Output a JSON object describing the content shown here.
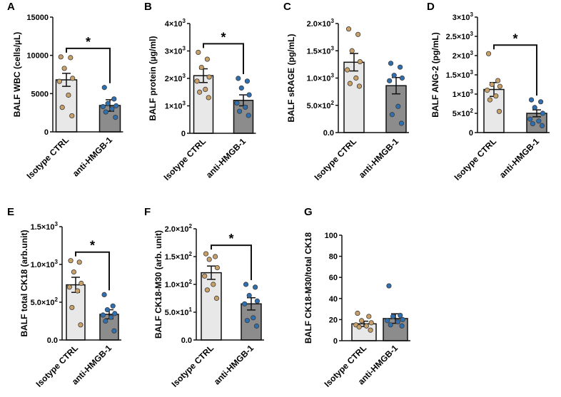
{
  "chart_data": [
    {
      "panel": "A",
      "type": "bar",
      "categories": [
        "Isotype CTRL",
        "anti-HMGB-1"
      ],
      "ylabel": "BALF WBC (cells/µL)",
      "ylim": [
        0,
        15000
      ],
      "yticks": [
        {
          "v": 0,
          "label": "0"
        },
        {
          "v": 5000,
          "label": "5000"
        },
        {
          "v": 10000,
          "label": "10000"
        },
        {
          "v": 15000,
          "label": "15000"
        }
      ],
      "values": [
        6800,
        3450
      ],
      "errors": [
        850,
        750
      ],
      "points": [
        [
          9800,
          9700,
          8300,
          7000,
          6600,
          4800,
          3200,
          2100
        ],
        [
          5800,
          4300,
          3700,
          3400,
          3300,
          3000,
          2600,
          1900
        ]
      ],
      "significance": "*"
    },
    {
      "panel": "B",
      "type": "bar",
      "categories": [
        "Isotype CTRL",
        "anti-HMGB-1"
      ],
      "ylabel": "BALF protein (µg/ml)",
      "ylim": [
        0,
        4000
      ],
      "yticks": [
        {
          "v": 0,
          "label": "0",
          "sup": ""
        },
        {
          "v": 1000,
          "label": "1×10",
          "sup": "3"
        },
        {
          "v": 2000,
          "label": "2×10",
          "sup": "3"
        },
        {
          "v": 3000,
          "label": "3×10",
          "sup": "3"
        },
        {
          "v": 4000,
          "label": "4×10",
          "sup": "3"
        }
      ],
      "values": [
        2100,
        1200
      ],
      "errors": [
        250,
        200
      ],
      "points": [
        [
          2950,
          2700,
          2400,
          2050,
          1900,
          1600,
          1500,
          1300
        ],
        [
          2000,
          1900,
          1650,
          1400,
          1100,
          950,
          800,
          650
        ]
      ],
      "significance": "*"
    },
    {
      "panel": "C",
      "type": "bar",
      "categories": [
        "Isotype CTRL",
        "anti-HMGB-1"
      ],
      "ylabel": "BALF sRAGE (pg/mL)",
      "ylim": [
        0,
        2000
      ],
      "yticks": [
        {
          "v": 0,
          "label": "0.0",
          "sup": ""
        },
        {
          "v": 500,
          "label": "5.0×10",
          "sup": "2"
        },
        {
          "v": 1000,
          "label": "1.0×10",
          "sup": "3"
        },
        {
          "v": 1500,
          "label": "1.5×10",
          "sup": "3"
        },
        {
          "v": 2000,
          "label": "2.0×10",
          "sup": "3"
        }
      ],
      "values": [
        1290,
        860
      ],
      "errors": [
        160,
        150
      ],
      "points": [
        [
          1900,
          1800,
          1500,
          1300,
          1150,
          1000,
          900,
          850
        ],
        [
          1270,
          1200,
          1050,
          1000,
          950,
          480,
          330,
          170
        ]
      ],
      "significance": ""
    },
    {
      "panel": "D",
      "type": "bar",
      "categories": [
        "Isotype CTRL",
        "anti-HMGB-1"
      ],
      "ylabel": "BALF ANG-2 (pg/mL)",
      "ylim": [
        0,
        3000
      ],
      "yticks": [
        {
          "v": 0,
          "label": "0",
          "sup": ""
        },
        {
          "v": 500,
          "label": "5×10",
          "sup": "2"
        },
        {
          "v": 1000,
          "label": "1×10",
          "sup": "3"
        },
        {
          "v": 1500,
          "label": "1.5×10",
          "sup": "3"
        },
        {
          "v": 2000,
          "label": "2×10",
          "sup": "3"
        },
        {
          "v": 2500,
          "label": "2.5×10",
          "sup": "3"
        },
        {
          "v": 3000,
          "label": "3×10",
          "sup": "3"
        }
      ],
      "values": [
        1120,
        500
      ],
      "errors": [
        180,
        90
      ],
      "points": [
        [
          2050,
          1350,
          1250,
          1200,
          1100,
          950,
          850,
          550
        ],
        [
          850,
          800,
          650,
          500,
          350,
          300,
          230,
          180
        ]
      ],
      "significance": "*"
    },
    {
      "panel": "E",
      "type": "bar",
      "categories": [
        "Isotype CTRL",
        "anti-HMGB-1"
      ],
      "ylabel": "BALF total CK18 (arb.unit)",
      "ylim": [
        0,
        1500
      ],
      "yticks": [
        {
          "v": 0,
          "label": "0.0",
          "sup": ""
        },
        {
          "v": 500,
          "label": "5.0×10",
          "sup": "2"
        },
        {
          "v": 1000,
          "label": "1.0×10",
          "sup": "3"
        },
        {
          "v": 1500,
          "label": "1.5×10",
          "sup": "3"
        }
      ],
      "values": [
        730,
        340
      ],
      "errors": [
        100,
        60
      ],
      "points": [
        [
          1050,
          1030,
          900,
          750,
          700,
          650,
          430,
          200
        ],
        [
          600,
          450,
          400,
          350,
          330,
          300,
          250,
          120
        ]
      ],
      "significance": "*"
    },
    {
      "panel": "F",
      "type": "bar",
      "categories": [
        "Isotype CTRL",
        "anti-HMGB-1"
      ],
      "ylabel": "BALF CK18-M30 (arb. unit)",
      "ylim": [
        0,
        200
      ],
      "yticks": [
        {
          "v": 0,
          "label": "0.0",
          "sup": ""
        },
        {
          "v": 50,
          "label": "5.0×10",
          "sup": "1"
        },
        {
          "v": 100,
          "label": "1.0×10",
          "sup": "2"
        },
        {
          "v": 150,
          "label": "1.5×10",
          "sup": "2"
        },
        {
          "v": 200,
          "label": "2.0×10",
          "sup": "2"
        }
      ],
      "values": [
        121,
        65
      ],
      "errors": [
        12,
        11
      ],
      "points": [
        [
          155,
          150,
          145,
          130,
          115,
          100,
          90,
          75
        ],
        [
          100,
          95,
          80,
          70,
          65,
          40,
          35,
          25
        ]
      ],
      "significance": "*"
    },
    {
      "panel": "G",
      "type": "bar",
      "categories": [
        "Isotype CTRL",
        "anti-HMGB-1"
      ],
      "ylabel": "BALF CK18-M30/total CK18",
      "ylim": [
        0,
        100
      ],
      "yticks": [
        {
          "v": 0,
          "label": "0",
          "sup": ""
        },
        {
          "v": 20,
          "label": "20",
          "sup": ""
        },
        {
          "v": 40,
          "label": "40",
          "sup": ""
        },
        {
          "v": 60,
          "label": "60",
          "sup": ""
        },
        {
          "v": 80,
          "label": "80",
          "sup": ""
        },
        {
          "v": 100,
          "label": "100",
          "sup": ""
        }
      ],
      "values": [
        16,
        21
      ],
      "errors": [
        2.5,
        4.5
      ],
      "points": [
        [
          26,
          23,
          19,
          17,
          15,
          14,
          13,
          10
        ],
        [
          52,
          24,
          23,
          20,
          19,
          18,
          15,
          14
        ]
      ],
      "significance": ""
    }
  ],
  "colors": {
    "bar_ctrl": "#e8e8e8",
    "bar_treat": "#8c8c8c",
    "dot_ctrl": "#c8a068",
    "dot_treat": "#2f6fb0",
    "axis": "#111111"
  }
}
